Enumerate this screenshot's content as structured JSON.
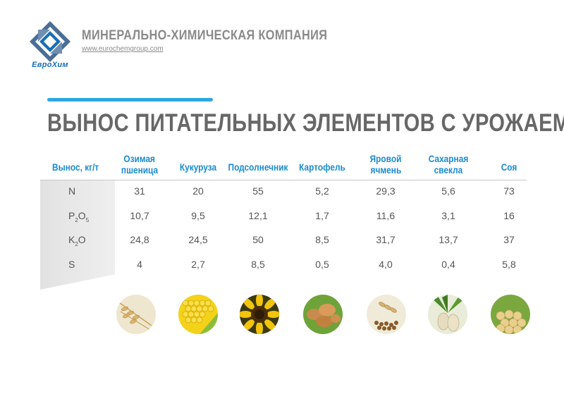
{
  "header": {
    "logo_text": "ЕвроХим",
    "company_name": "МИНЕРАЛЬНО-ХИМИЧЕСКАЯ КОМПАНИЯ",
    "website": "www.eurochemgroup.com"
  },
  "title": "ВЫНОС ПИТАТЕЛЬНЫХ ЭЛЕМЕНТОВ С УРОЖАЕМ",
  "colors": {
    "accent": "#2ea7e0",
    "header_text": "#1a8bcf",
    "logo": "#1a6fb5"
  },
  "table": {
    "row_header_label": "Вынос, кг/т",
    "columns": [
      {
        "line1": "Озимая",
        "line2": "пшеница"
      },
      {
        "line1": "Кукуруза",
        "line2": ""
      },
      {
        "line1": "Подсолнечник",
        "line2": ""
      },
      {
        "line1": "Картофель",
        "line2": ""
      },
      {
        "line1": "Яровой",
        "line2": "ячмень"
      },
      {
        "line1": "Сахарная",
        "line2": "свекла"
      },
      {
        "line1": "Соя",
        "line2": ""
      }
    ],
    "rows": [
      {
        "label_main": "N",
        "sub1": "",
        "mid": "",
        "sub2": "",
        "values": [
          "31",
          "20",
          "55",
          "5,2",
          "29,3",
          "5,6",
          "73"
        ]
      },
      {
        "label_main": "P",
        "sub1": "2",
        "mid": "O",
        "sub2": "5",
        "values": [
          "10,7",
          "9,5",
          "12,1",
          "1,7",
          "11,6",
          "3,1",
          "16"
        ]
      },
      {
        "label_main": "K",
        "sub1": "2",
        "mid": "O",
        "sub2": "",
        "values": [
          "24,8",
          "24,5",
          "50",
          "8,5",
          "31,7",
          "13,7",
          "37"
        ]
      },
      {
        "label_main": "S",
        "sub1": "",
        "mid": "",
        "sub2": "",
        "values": [
          "4",
          "2,7",
          "8,5",
          "0,5",
          "4,0",
          "0,4",
          "5,8"
        ]
      }
    ]
  },
  "crop_images": [
    "wheat-image",
    "corn-image",
    "sunflower-image",
    "potato-image",
    "barley-image",
    "sugar-beet-image",
    "soybean-image"
  ]
}
